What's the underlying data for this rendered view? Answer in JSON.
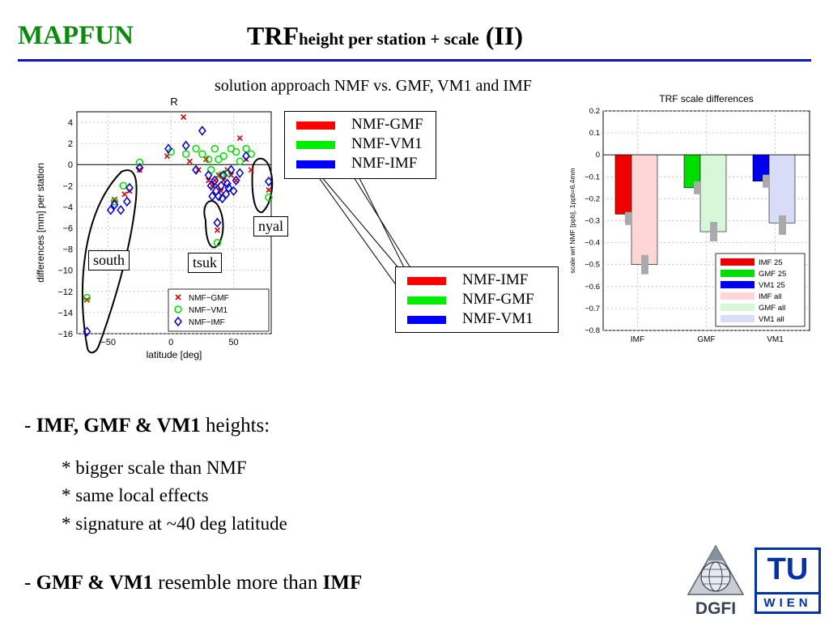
{
  "slide": {
    "brand": "MAPFUN",
    "title_main": "TRF",
    "title_sub": "height per station + scale",
    "title_suffix": "(II)",
    "subtitle": "solution approach NMF vs. GMF, VM1 and IMF"
  },
  "legend_box_1": [
    "NMF-GMF",
    "NMF-VM1",
    "NMF-IMF"
  ],
  "legend_box_2": [
    "NMF-IMF",
    "NMF-GMF",
    "NMF-VM1"
  ],
  "legend_colors": {
    "NMF-GMF": "#ff0000",
    "NMF-VM1": "#00ee00",
    "NMF-IMF": "#0000ff"
  },
  "bullets": {
    "b1_bold": "IMF, GMF & VM1",
    "b1_rest": " heights:",
    "sub1": "* bigger scale than NMF",
    "sub2": "* same local effects",
    "sub3": "* signature at ~40 deg latitude",
    "b2_bold1": "GMF & VM1",
    "b2_mid": " resemble more than ",
    "b2_bold2": "IMF"
  },
  "logos": {
    "dgfi": "DGFI",
    "tu": "TU",
    "wien": "WIEN"
  },
  "chart_data": [
    {
      "type": "scatter",
      "title": "R",
      "xlabel": "latitude [deg]",
      "ylabel": "differences [mm] per station",
      "xlim": [
        -75,
        80
      ],
      "ylim": [
        -16,
        5
      ],
      "xticks": [
        -50,
        0,
        50
      ],
      "yticks": [
        4,
        2,
        0,
        -2,
        -4,
        -6,
        -8,
        -10,
        -12,
        -14,
        -16
      ],
      "grid": true,
      "legend_position": "bottom-right",
      "annotations": [
        "south",
        "tsuk",
        "nyal"
      ],
      "series": [
        {
          "name": "NMF−GMF",
          "marker": "x",
          "color": "#dd0000",
          "points": [
            [
              -67,
              -12.8
            ],
            [
              -45,
              -3.3
            ],
            [
              -37,
              -2.8
            ],
            [
              -33,
              -2.5
            ],
            [
              -25,
              -0.5
            ],
            [
              -3,
              0.8
            ],
            [
              10,
              4.5
            ],
            [
              15,
              0.3
            ],
            [
              22,
              -0.5
            ],
            [
              28,
              0.5
            ],
            [
              30,
              -1.5
            ],
            [
              33,
              -2.0
            ],
            [
              35,
              -1.5
            ],
            [
              37,
              -2.0
            ],
            [
              38,
              -1.0
            ],
            [
              40,
              -2.5
            ],
            [
              42,
              -1.5
            ],
            [
              45,
              -0.5
            ],
            [
              48,
              -1.0
            ],
            [
              52,
              -1.5
            ],
            [
              55,
              2.5
            ],
            [
              60,
              0.5
            ],
            [
              64,
              -0.5
            ],
            [
              37,
              -6.2
            ],
            [
              78,
              -2.4
            ]
          ]
        },
        {
          "name": "NMF−VM1",
          "marker": "o",
          "color": "#00dd00",
          "points": [
            [
              -67,
              -12.6
            ],
            [
              -45,
              -3.5
            ],
            [
              -38,
              -2.0
            ],
            [
              -25,
              0.2
            ],
            [
              0,
              1.2
            ],
            [
              12,
              1.0
            ],
            [
              20,
              1.5
            ],
            [
              25,
              1.0
            ],
            [
              30,
              0.5
            ],
            [
              32,
              -0.5
            ],
            [
              35,
              1.5
            ],
            [
              38,
              0.5
            ],
            [
              40,
              -1.0
            ],
            [
              42,
              0.8
            ],
            [
              45,
              -0.8
            ],
            [
              48,
              1.5
            ],
            [
              52,
              1.2
            ],
            [
              55,
              0.3
            ],
            [
              60,
              1.5
            ],
            [
              64,
              1.0
            ],
            [
              37,
              -7.4
            ],
            [
              78,
              -3.1
            ]
          ]
        },
        {
          "name": "NMF−IMF",
          "marker": "diamond",
          "color": "#0000cc",
          "points": [
            [
              -67,
              -15.8
            ],
            [
              -48,
              -4.3
            ],
            [
              -45,
              -3.8
            ],
            [
              -40,
              -4.3
            ],
            [
              -35,
              -3.5
            ],
            [
              -33,
              -2.2
            ],
            [
              -25,
              -0.3
            ],
            [
              -2,
              1.5
            ],
            [
              12,
              1.8
            ],
            [
              20,
              -0.5
            ],
            [
              25,
              3.2
            ],
            [
              30,
              -1.0
            ],
            [
              32,
              -2.0
            ],
            [
              33,
              -3.0
            ],
            [
              35,
              -1.5
            ],
            [
              36,
              -2.5
            ],
            [
              38,
              -3.0
            ],
            [
              40,
              -2.0
            ],
            [
              41,
              -3.2
            ],
            [
              42,
              -1.0
            ],
            [
              44,
              -2.8
            ],
            [
              45,
              -1.8
            ],
            [
              46,
              -2.2
            ],
            [
              48,
              -0.5
            ],
            [
              50,
              -2.5
            ],
            [
              52,
              -1.5
            ],
            [
              55,
              -0.8
            ],
            [
              60,
              0.8
            ],
            [
              37,
              -5.5
            ],
            [
              78,
              -1.6
            ]
          ]
        }
      ]
    },
    {
      "type": "bar",
      "title": "TRF scale differences",
      "ylabel": "scale wrt NMF [ppb], 1ppb=6.4mm",
      "ylim": [
        -0.8,
        0.2
      ],
      "yticks": [
        0.2,
        0.1,
        0,
        -0.1,
        -0.2,
        -0.3,
        -0.4,
        -0.5,
        -0.6,
        -0.7,
        -0.8
      ],
      "categories": [
        "IMF",
        "GMF",
        "VM1"
      ],
      "grid": true,
      "legend_position": "bottom-right",
      "series": [
        {
          "name": "IMF 25",
          "color": "#ee0000",
          "values": [
            -0.27,
            null,
            null
          ]
        },
        {
          "name": "GMF 25",
          "color": "#00dd00",
          "values": [
            null,
            -0.15,
            null
          ]
        },
        {
          "name": "VM1 25",
          "color": "#0000ee",
          "values": [
            null,
            null,
            -0.12
          ]
        },
        {
          "name": "IMF all",
          "color": "#ffd6d6",
          "values": [
            -0.5,
            null,
            null
          ]
        },
        {
          "name": "GMF all",
          "color": "#d8f7d8",
          "values": [
            null,
            -0.35,
            null
          ]
        },
        {
          "name": "VM1 all",
          "color": "#d8dcf8",
          "values": [
            null,
            null,
            -0.31
          ]
        }
      ],
      "error_markers": {
        "color": "#aaaaaa",
        "values": [
          [
            -0.29,
            -0.5
          ],
          [
            -0.15,
            -0.35
          ],
          [
            -0.12,
            -0.32
          ]
        ]
      }
    }
  ]
}
